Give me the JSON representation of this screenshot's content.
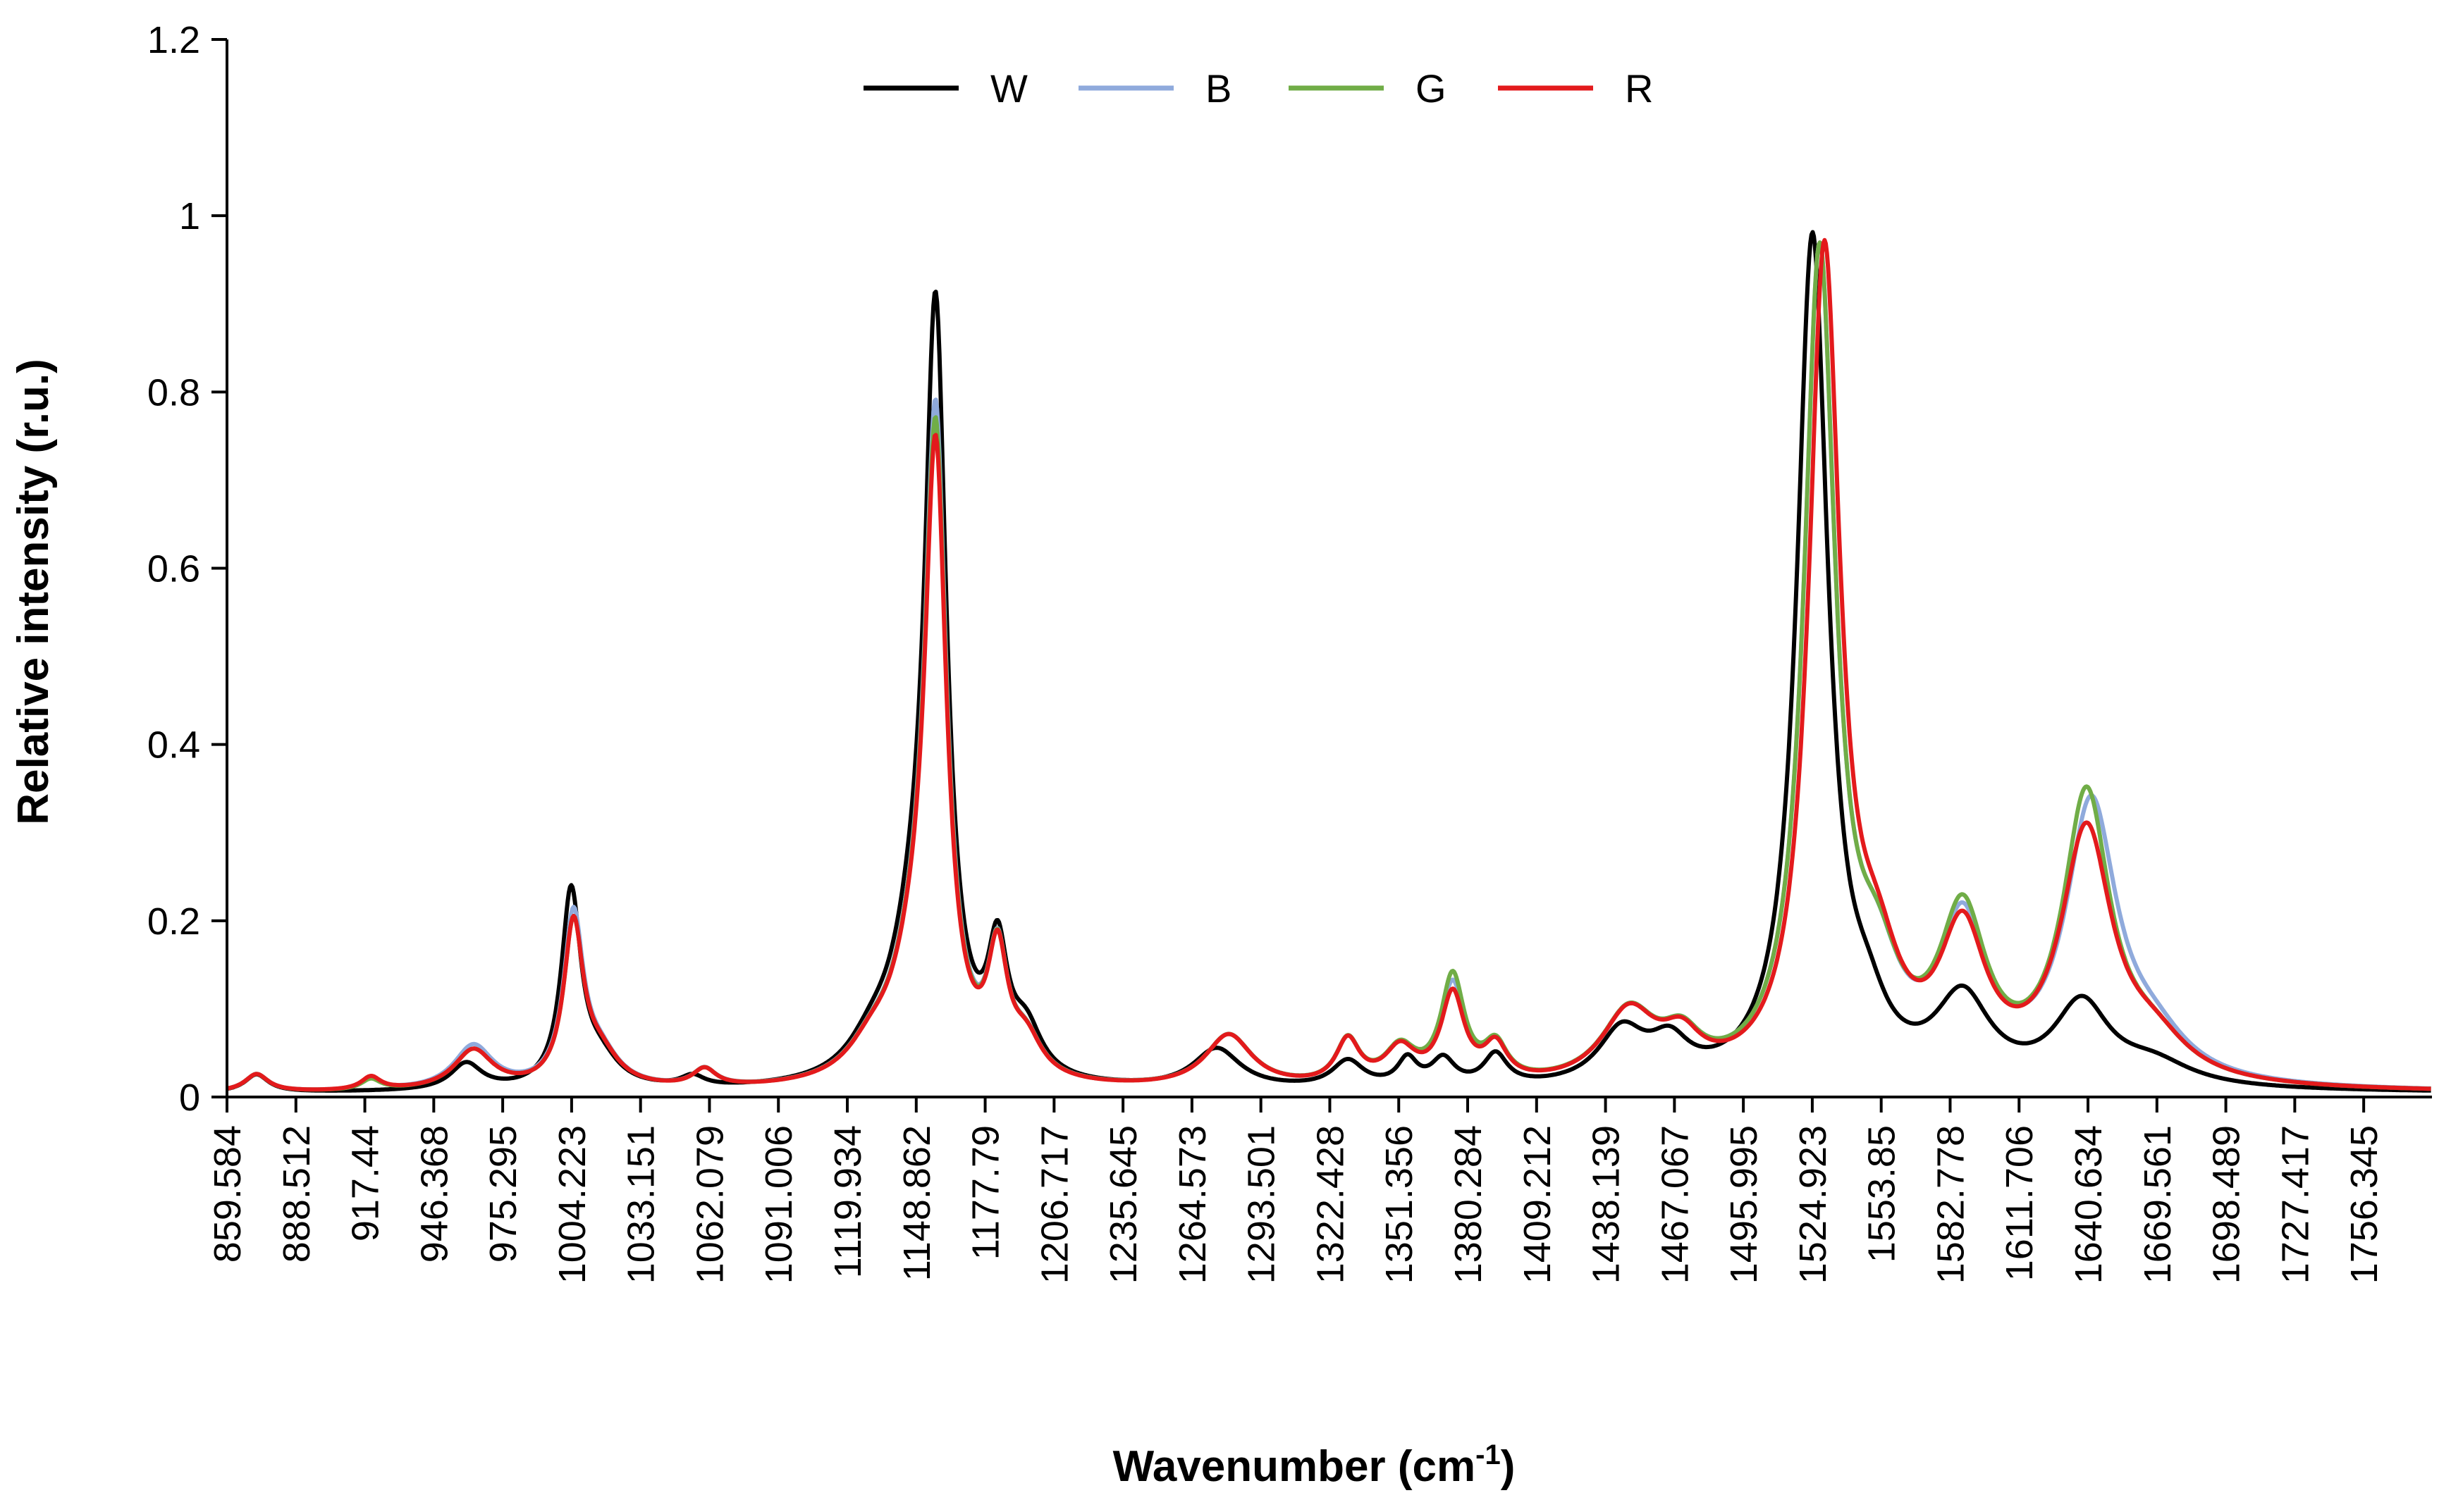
{
  "chart_data": {
    "type": "line",
    "title": "",
    "xlabel": "Wavenumber (cm",
    "xlabel_sup": "-1",
    "xlabel_close": ")",
    "ylabel": "Relative intensity (r.u.)",
    "xlim": [
      859.584,
      1785
    ],
    "ylim": [
      0,
      1.2
    ],
    "yticks": [
      "0",
      "0.2",
      "0.4",
      "0.6",
      "0.8",
      "1",
      "1.2"
    ],
    "ytick_values": [
      0,
      0.2,
      0.4,
      0.6,
      0.8,
      1.0,
      1.2
    ],
    "xtick_labels": [
      "859.584",
      "888.512",
      "917.44",
      "946.368",
      "975.295",
      "1004.223",
      "1033.151",
      "1062.079",
      "1091.006",
      "1119.934",
      "1148.862",
      "1177.79",
      "1206.717",
      "1235.645",
      "1264.573",
      "1293.501",
      "1322.428",
      "1351.356",
      "1380.284",
      "1409.212",
      "1438.139",
      "1467.067",
      "1495.995",
      "1524.923",
      "1553.85",
      "1582.778",
      "1611.706",
      "1640.634",
      "1669.561",
      "1698.489",
      "1727.417",
      "1756.345"
    ],
    "xtick_values": [
      859.584,
      888.512,
      917.44,
      946.368,
      975.295,
      1004.223,
      1033.151,
      1062.079,
      1091.006,
      1119.934,
      1148.862,
      1177.79,
      1206.717,
      1235.645,
      1264.573,
      1293.501,
      1322.428,
      1351.356,
      1380.284,
      1409.212,
      1438.139,
      1467.067,
      1495.995,
      1524.923,
      1553.85,
      1582.778,
      1611.706,
      1640.634,
      1669.561,
      1698.489,
      1727.417,
      1756.345
    ],
    "legend_position": "top-center",
    "series": [
      {
        "name": "W",
        "color": "#000000",
        "peaks": [
          {
            "c": 872,
            "h": 0.02,
            "w": 6
          },
          {
            "c": 960,
            "h": 0.03,
            "w": 8
          },
          {
            "c": 1004,
            "h": 0.22,
            "w": 5
          },
          {
            "c": 1016,
            "h": 0.03,
            "w": 10
          },
          {
            "c": 1055,
            "h": 0.012,
            "w": 6
          },
          {
            "c": 1130,
            "h": 0.03,
            "w": 12
          },
          {
            "c": 1157,
            "h": 0.82,
            "w": 5.5
          },
          {
            "c": 1148,
            "h": 0.12,
            "w": 12
          },
          {
            "c": 1183,
            "h": 0.13,
            "w": 5
          },
          {
            "c": 1195,
            "h": 0.05,
            "w": 8
          },
          {
            "c": 1275,
            "h": 0.045,
            "w": 12
          },
          {
            "c": 1330,
            "h": 0.03,
            "w": 8
          },
          {
            "c": 1355,
            "h": 0.03,
            "w": 5
          },
          {
            "c": 1370,
            "h": 0.03,
            "w": 6
          },
          {
            "c": 1392,
            "h": 0.035,
            "w": 6
          },
          {
            "c": 1445,
            "h": 0.06,
            "w": 12
          },
          {
            "c": 1465,
            "h": 0.04,
            "w": 10
          },
          {
            "c": 1525,
            "h": 0.96,
            "w": 8
          },
          {
            "c": 1548,
            "h": 0.05,
            "w": 10
          },
          {
            "c": 1588,
            "h": 0.095,
            "w": 14
          },
          {
            "c": 1638,
            "h": 0.09,
            "w": 14
          },
          {
            "c": 1668,
            "h": 0.025,
            "w": 20
          }
        ]
      },
      {
        "name": "B",
        "color": "#8FAADC",
        "peaks": [
          {
            "c": 872,
            "h": 0.02,
            "w": 6
          },
          {
            "c": 920,
            "h": 0.012,
            "w": 5
          },
          {
            "c": 963,
            "h": 0.05,
            "w": 10
          },
          {
            "c": 1005,
            "h": 0.19,
            "w": 5
          },
          {
            "c": 1016,
            "h": 0.035,
            "w": 10
          },
          {
            "c": 1060,
            "h": 0.02,
            "w": 6
          },
          {
            "c": 1130,
            "h": 0.03,
            "w": 12
          },
          {
            "c": 1157,
            "h": 0.71,
            "w": 5.5
          },
          {
            "c": 1148,
            "h": 0.1,
            "w": 12
          },
          {
            "c": 1183,
            "h": 0.13,
            "w": 5
          },
          {
            "c": 1195,
            "h": 0.04,
            "w": 8
          },
          {
            "c": 1280,
            "h": 0.06,
            "w": 12
          },
          {
            "c": 1330,
            "h": 0.05,
            "w": 6
          },
          {
            "c": 1352,
            "h": 0.04,
            "w": 8
          },
          {
            "c": 1374,
            "h": 0.11,
            "w": 6
          },
          {
            "c": 1392,
            "h": 0.04,
            "w": 6
          },
          {
            "c": 1448,
            "h": 0.08,
            "w": 14
          },
          {
            "c": 1470,
            "h": 0.04,
            "w": 10
          },
          {
            "c": 1528,
            "h": 0.93,
            "w": 8
          },
          {
            "c": 1552,
            "h": 0.1,
            "w": 12
          },
          {
            "c": 1588,
            "h": 0.17,
            "w": 12
          },
          {
            "c": 1642,
            "h": 0.31,
            "w": 13
          },
          {
            "c": 1668,
            "h": 0.04,
            "w": 18
          }
        ]
      },
      {
        "name": "G",
        "color": "#70AD47",
        "peaks": [
          {
            "c": 872,
            "h": 0.02,
            "w": 6
          },
          {
            "c": 920,
            "h": 0.012,
            "w": 5
          },
          {
            "c": 963,
            "h": 0.045,
            "w": 10
          },
          {
            "c": 1005,
            "h": 0.18,
            "w": 5
          },
          {
            "c": 1016,
            "h": 0.035,
            "w": 10
          },
          {
            "c": 1060,
            "h": 0.02,
            "w": 6
          },
          {
            "c": 1130,
            "h": 0.03,
            "w": 12
          },
          {
            "c": 1157,
            "h": 0.69,
            "w": 5.5
          },
          {
            "c": 1148,
            "h": 0.1,
            "w": 12
          },
          {
            "c": 1183,
            "h": 0.13,
            "w": 5
          },
          {
            "c": 1195,
            "h": 0.04,
            "w": 8
          },
          {
            "c": 1280,
            "h": 0.06,
            "w": 12
          },
          {
            "c": 1330,
            "h": 0.05,
            "w": 6
          },
          {
            "c": 1352,
            "h": 0.04,
            "w": 8
          },
          {
            "c": 1374,
            "h": 0.12,
            "w": 6
          },
          {
            "c": 1392,
            "h": 0.04,
            "w": 6
          },
          {
            "c": 1448,
            "h": 0.08,
            "w": 14
          },
          {
            "c": 1470,
            "h": 0.04,
            "w": 10
          },
          {
            "c": 1528,
            "h": 0.93,
            "w": 8
          },
          {
            "c": 1552,
            "h": 0.1,
            "w": 12
          },
          {
            "c": 1588,
            "h": 0.18,
            "w": 12
          },
          {
            "c": 1640,
            "h": 0.32,
            "w": 12
          },
          {
            "c": 1668,
            "h": 0.04,
            "w": 18
          }
        ]
      },
      {
        "name": "R",
        "color": "#E31A1C",
        "peaks": [
          {
            "c": 872,
            "h": 0.02,
            "w": 6
          },
          {
            "c": 920,
            "h": 0.015,
            "w": 5
          },
          {
            "c": 963,
            "h": 0.045,
            "w": 10
          },
          {
            "c": 1005,
            "h": 0.18,
            "w": 5
          },
          {
            "c": 1016,
            "h": 0.035,
            "w": 10
          },
          {
            "c": 1060,
            "h": 0.02,
            "w": 6
          },
          {
            "c": 1130,
            "h": 0.03,
            "w": 12
          },
          {
            "c": 1157,
            "h": 0.67,
            "w": 5.5
          },
          {
            "c": 1148,
            "h": 0.1,
            "w": 12
          },
          {
            "c": 1183,
            "h": 0.13,
            "w": 5
          },
          {
            "c": 1195,
            "h": 0.04,
            "w": 8
          },
          {
            "c": 1280,
            "h": 0.06,
            "w": 12
          },
          {
            "c": 1330,
            "h": 0.05,
            "w": 6
          },
          {
            "c": 1352,
            "h": 0.04,
            "w": 8
          },
          {
            "c": 1374,
            "h": 0.1,
            "w": 6
          },
          {
            "c": 1392,
            "h": 0.04,
            "w": 6
          },
          {
            "c": 1448,
            "h": 0.08,
            "w": 14
          },
          {
            "c": 1470,
            "h": 0.04,
            "w": 10
          },
          {
            "c": 1530,
            "h": 0.93,
            "w": 8
          },
          {
            "c": 1552,
            "h": 0.1,
            "w": 12
          },
          {
            "c": 1588,
            "h": 0.16,
            "w": 12
          },
          {
            "c": 1640,
            "h": 0.28,
            "w": 13
          },
          {
            "c": 1668,
            "h": 0.04,
            "w": 18
          }
        ]
      }
    ]
  }
}
